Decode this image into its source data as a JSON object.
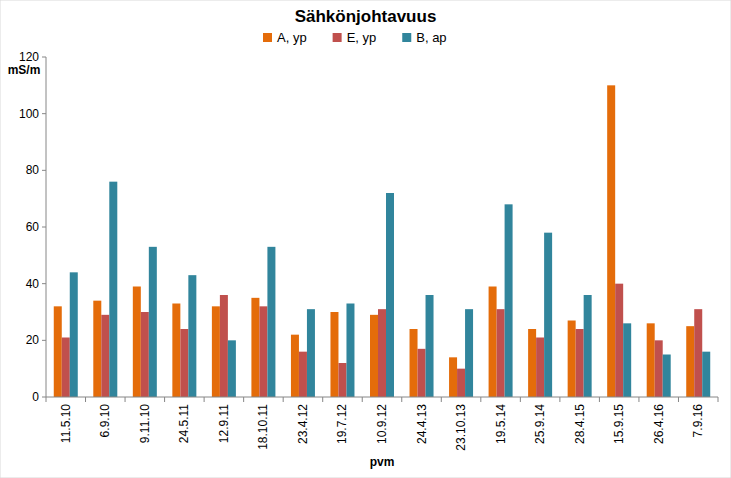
{
  "chart_data": {
    "type": "bar",
    "title": "Sähkönjohtavuus",
    "x_label": "pvm",
    "y_label": "mS/m",
    "categories": [
      "11.5.10",
      "6.9.10",
      "9.11.10",
      "24.5.11",
      "12.9.11",
      "18.10.11",
      "23.4.12",
      "19.7.12",
      "10.9.12",
      "24.4.13",
      "23.10.13",
      "19.5.14",
      "25.9.14",
      "28.4.15",
      "15.9.15",
      "26.4.16",
      "7.9.16"
    ],
    "series": [
      {
        "name": "A, yp",
        "color": "#e46c0a",
        "values": [
          32,
          34,
          39,
          33,
          32,
          35,
          22,
          30,
          29,
          24,
          14,
          39,
          24,
          27,
          110,
          26,
          25
        ]
      },
      {
        "name": "E, yp",
        "color": "#c0504d",
        "values": [
          21,
          29,
          30,
          24,
          36,
          32,
          16,
          12,
          31,
          17,
          10,
          31,
          21,
          24,
          40,
          20,
          31
        ]
      },
      {
        "name": "B, ap",
        "color": "#31859c",
        "values": [
          44,
          76,
          53,
          43,
          20,
          53,
          31,
          33,
          72,
          36,
          31,
          68,
          58,
          36,
          26,
          15,
          16
        ]
      }
    ],
    "ylim": [
      0,
      120
    ],
    "yticks": [
      0,
      20,
      40,
      60,
      80,
      100,
      120
    ],
    "grid": false,
    "legend": "top"
  }
}
